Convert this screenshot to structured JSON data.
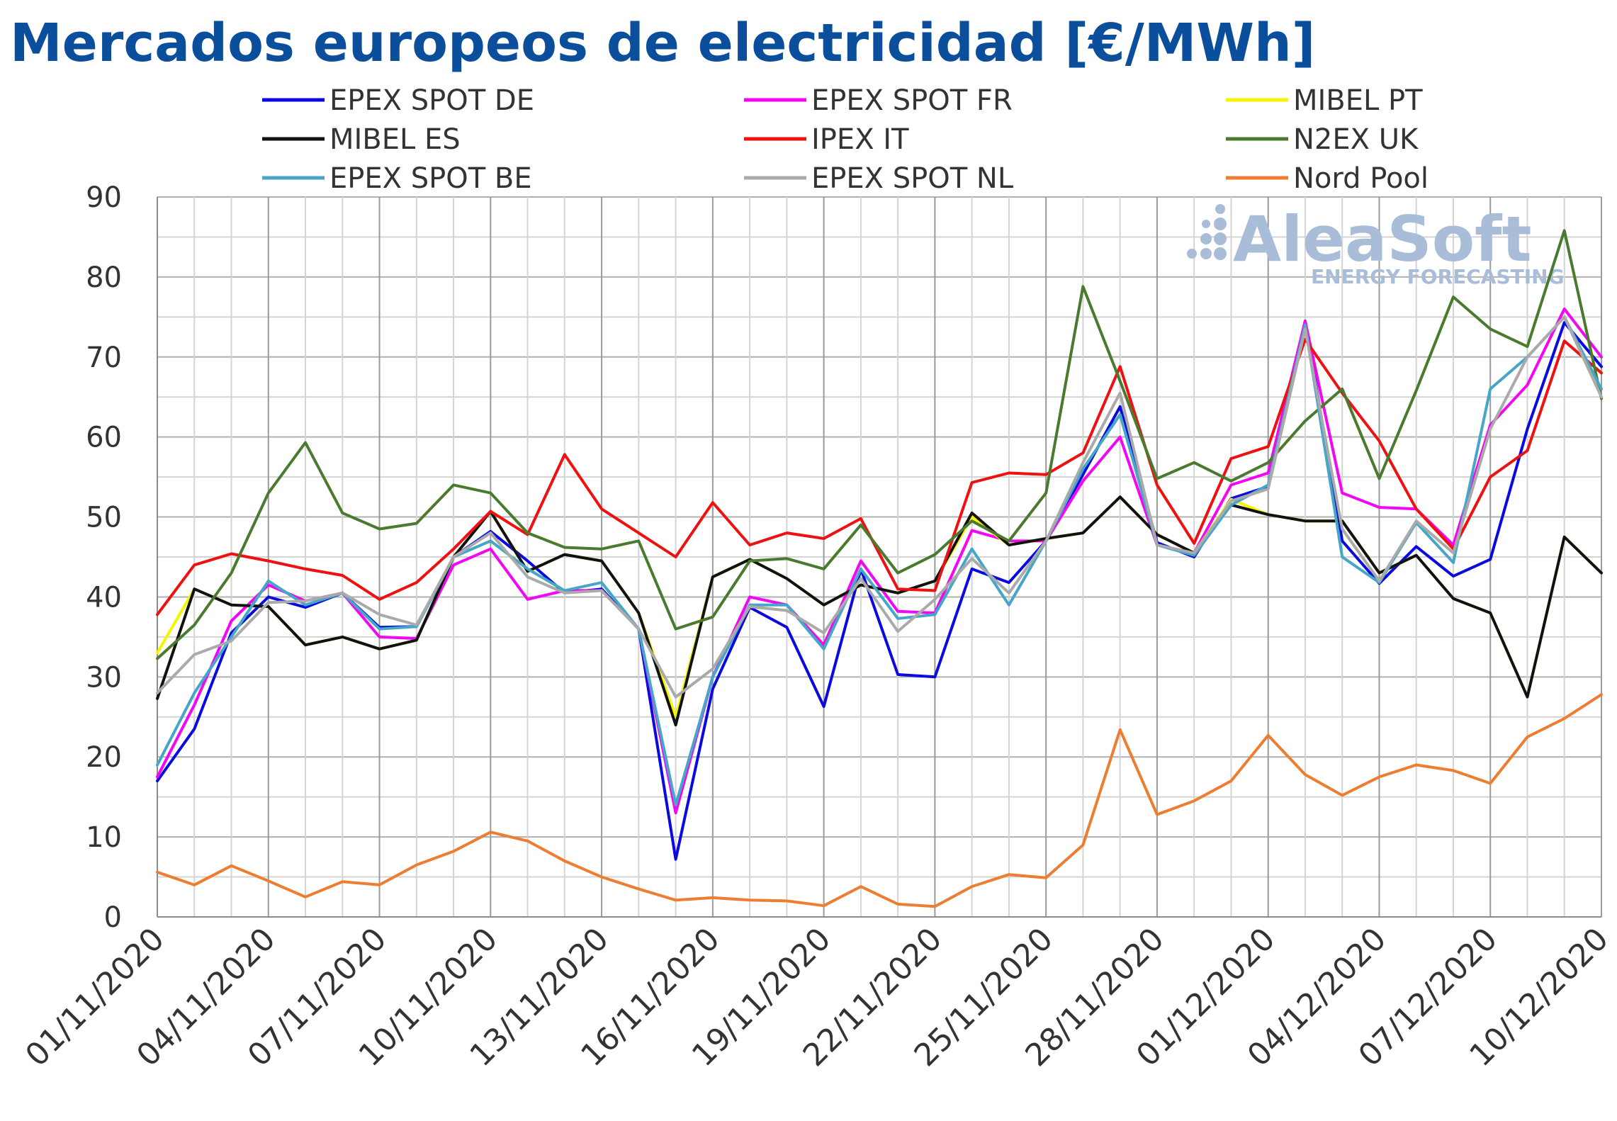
{
  "chart_data": {
    "type": "line",
    "title": "Mercados europeos de electricidad [€/MWh]",
    "xlabel": "",
    "ylabel": "",
    "ylim": [
      0,
      90
    ],
    "yticks": [
      "0",
      "10",
      "20",
      "30",
      "40",
      "50",
      "60",
      "70",
      "80",
      "90"
    ],
    "grid": true,
    "legend_position": "top",
    "x": [
      "01/11/2020",
      "02/11/2020",
      "03/11/2020",
      "04/11/2020",
      "05/11/2020",
      "06/11/2020",
      "07/11/2020",
      "08/11/2020",
      "09/11/2020",
      "10/11/2020",
      "11/11/2020",
      "12/11/2020",
      "13/11/2020",
      "14/11/2020",
      "15/11/2020",
      "16/11/2020",
      "17/11/2020",
      "18/11/2020",
      "19/11/2020",
      "20/11/2020",
      "21/11/2020",
      "22/11/2020",
      "23/11/2020",
      "24/11/2020",
      "25/11/2020",
      "26/11/2020",
      "27/11/2020",
      "28/11/2020",
      "29/11/2020",
      "30/11/2020",
      "01/12/2020",
      "02/12/2020",
      "03/12/2020",
      "04/12/2020",
      "05/12/2020",
      "06/12/2020",
      "07/12/2020",
      "08/12/2020",
      "09/12/2020",
      "10/12/2020"
    ],
    "xtick_labels": [
      "01/11/2020",
      "04/11/2020",
      "07/11/2020",
      "10/11/2020",
      "13/11/2020",
      "16/11/2020",
      "19/11/2020",
      "22/11/2020",
      "25/11/2020",
      "28/11/2020",
      "01/12/2020",
      "04/12/2020",
      "07/12/2020",
      "10/12/2020"
    ],
    "series": [
      {
        "name": "EPEX SPOT DE",
        "color": "#0a0ade",
        "values": [
          17.0,
          23.5,
          35.5,
          40.0,
          38.7,
          40.5,
          36.2,
          36.3,
          45.0,
          48.2,
          44.5,
          40.5,
          41.0,
          36.0,
          7.2,
          28.5,
          38.7,
          36.2,
          26.3,
          43.5,
          30.3,
          30.0,
          43.5,
          41.8,
          47.0,
          55.3,
          63.8,
          46.8,
          45.0,
          52.3,
          53.8,
          74.5,
          47.0,
          41.7,
          46.3,
          42.6,
          44.7,
          61.0,
          74.3,
          68.8
        ]
      },
      {
        "name": "EPEX SPOT FR",
        "color": "#f207f2",
        "values": [
          17.5,
          26.5,
          37.0,
          41.5,
          39.5,
          40.5,
          35.0,
          34.8,
          44.0,
          46.0,
          39.7,
          40.8,
          40.8,
          36.0,
          13.0,
          30.0,
          40.0,
          39.0,
          34.0,
          44.5,
          38.2,
          38.0,
          48.3,
          47.0,
          47.0,
          54.5,
          60.0,
          46.5,
          45.5,
          54.0,
          55.5,
          74.5,
          53.0,
          51.2,
          51.0,
          46.5,
          61.5,
          66.5,
          76.0,
          70.0
        ]
      },
      {
        "name": "MIBEL PT",
        "color": "#f5f500",
        "values": [
          33.0,
          41.0,
          39.0,
          38.8,
          34.0,
          35.0,
          33.5,
          34.6,
          45.0,
          50.7,
          43.2,
          45.3,
          44.5,
          38.0,
          25.0,
          42.5,
          44.7,
          42.3,
          39.0,
          41.5,
          40.5,
          42.0,
          50.0,
          46.5,
          47.3,
          48.0,
          52.5,
          47.8,
          45.5,
          52.2,
          50.3,
          49.5,
          49.5,
          43.0,
          45.2,
          39.8,
          38.0,
          27.5,
          47.5,
          43.0
        ]
      },
      {
        "name": "MIBEL ES",
        "color": "#111111",
        "values": [
          27.3,
          41.0,
          39.0,
          38.8,
          34.0,
          35.0,
          33.5,
          34.6,
          45.0,
          50.7,
          43.2,
          45.3,
          44.5,
          38.0,
          24.0,
          42.5,
          44.7,
          42.3,
          39.0,
          41.5,
          40.5,
          42.0,
          50.5,
          46.5,
          47.3,
          48.0,
          52.5,
          47.8,
          45.5,
          51.5,
          50.3,
          49.5,
          49.5,
          43.0,
          45.2,
          39.8,
          38.0,
          27.5,
          47.5,
          43.0
        ]
      },
      {
        "name": "IPEX IT",
        "color": "#ee1111",
        "values": [
          37.8,
          44.0,
          45.4,
          44.5,
          43.5,
          42.7,
          39.7,
          41.8,
          46.0,
          50.7,
          47.8,
          57.8,
          51.0,
          48.0,
          45.0,
          51.8,
          46.5,
          48.0,
          47.3,
          49.8,
          41.0,
          40.8,
          54.3,
          55.5,
          55.3,
          58.0,
          68.8,
          54.0,
          46.7,
          57.3,
          58.8,
          72.2,
          65.5,
          59.5,
          51.0,
          46.0,
          55.0,
          58.3,
          72.0,
          68.0
        ]
      },
      {
        "name": "N2EX UK",
        "color": "#4a7a2e",
        "values": [
          32.3,
          36.5,
          43.0,
          53.0,
          59.3,
          50.5,
          48.5,
          49.2,
          54.0,
          53.0,
          48.0,
          46.2,
          46.0,
          47.0,
          36.0,
          37.5,
          44.5,
          44.8,
          43.5,
          49.0,
          43.0,
          45.3,
          49.5,
          47.0,
          53.0,
          78.8,
          67.0,
          54.8,
          56.8,
          54.5,
          56.8,
          62.0,
          66.0,
          54.8,
          65.8,
          77.5,
          73.5,
          71.3,
          85.8,
          64.8
        ]
      },
      {
        "name": "EPEX SPOT BE",
        "color": "#45a6c8",
        "values": [
          19.0,
          28.0,
          35.0,
          42.0,
          39.0,
          40.5,
          36.0,
          36.3,
          45.0,
          47.0,
          43.5,
          40.8,
          41.8,
          36.0,
          14.0,
          30.0,
          39.0,
          39.0,
          33.5,
          43.5,
          37.3,
          37.8,
          46.0,
          39.0,
          47.0,
          56.0,
          62.8,
          46.5,
          45.2,
          51.5,
          54.0,
          74.0,
          45.0,
          41.8,
          49.3,
          44.3,
          66.0,
          70.0,
          75.0,
          66.0
        ]
      },
      {
        "name": "EPEX SPOT NL",
        "color": "#aaaaaa",
        "values": [
          28.0,
          32.8,
          34.5,
          39.3,
          39.5,
          40.5,
          37.8,
          36.5,
          45.0,
          48.0,
          42.5,
          40.5,
          40.8,
          36.0,
          27.5,
          31.0,
          38.8,
          38.3,
          35.5,
          42.3,
          35.7,
          39.7,
          44.8,
          40.5,
          47.0,
          56.8,
          65.5,
          46.5,
          45.5,
          52.0,
          53.5,
          73.5,
          48.5,
          42.0,
          49.5,
          45.5,
          61.0,
          70.0,
          75.0,
          65.0
        ]
      },
      {
        "name": "Nord Pool",
        "color": "#ed7d31",
        "values": [
          5.6,
          4.0,
          6.4,
          4.5,
          2.5,
          4.4,
          4.0,
          6.5,
          8.2,
          10.6,
          9.5,
          7.0,
          5.0,
          3.5,
          2.1,
          2.4,
          2.1,
          2.0,
          1.4,
          3.8,
          1.6,
          1.3,
          3.8,
          5.3,
          4.9,
          9.0,
          23.4,
          12.8,
          14.5,
          17.0,
          22.7,
          17.8,
          15.2,
          17.5,
          19.0,
          18.3,
          16.7,
          22.5,
          24.8,
          27.8
        ]
      }
    ]
  }
}
